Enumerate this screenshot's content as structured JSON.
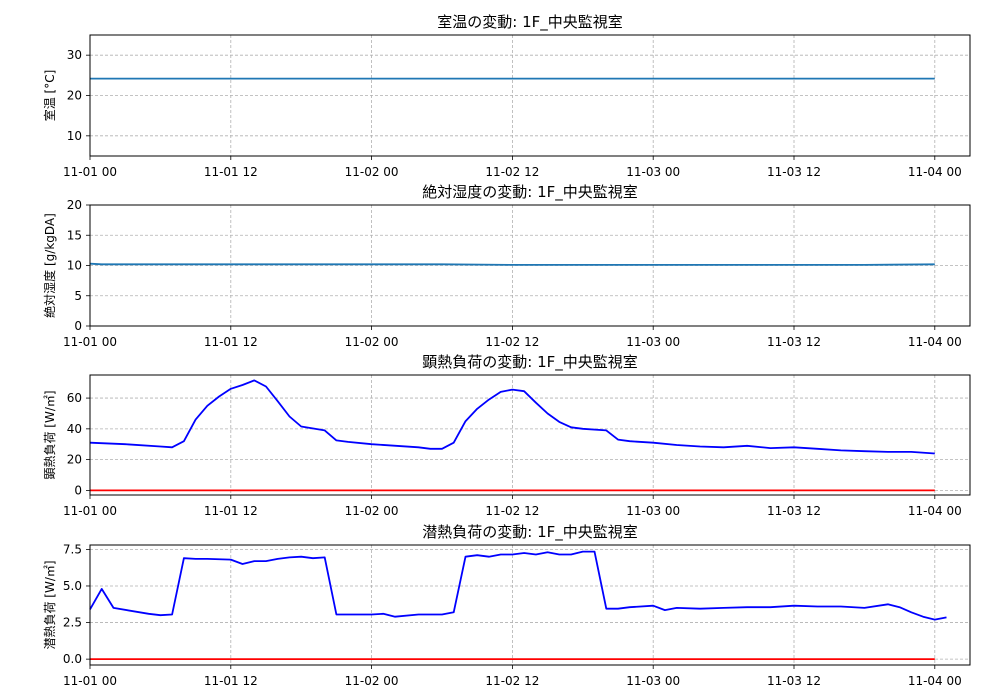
{
  "chart_data": [
    {
      "type": "line",
      "title": "室温の変動: 1F_中央監視室",
      "ylabel": "室温 [°C]",
      "xlim": [
        "2024-11-01 00:00",
        "2024-11-04 03:00"
      ],
      "ylim": [
        5,
        35
      ],
      "yticks": [
        10,
        20,
        30
      ],
      "xticklabels": [
        "11-01 00",
        "11-01 12",
        "11-02 00",
        "11-02 12",
        "11-03 00",
        "11-03 12",
        "11-04 00"
      ],
      "grid": true,
      "series": [
        {
          "color": "#1f77b4",
          "x": [
            "2024-11-01 00:00",
            "2024-11-04 00:00"
          ],
          "y": [
            24.2,
            24.2
          ]
        }
      ]
    },
    {
      "type": "line",
      "title": "絶対湿度の変動: 1F_中央監視室",
      "ylabel": "絶対湿度 [g/kgDA]",
      "xlim": [
        "2024-11-01 00:00",
        "2024-11-04 03:00"
      ],
      "ylim": [
        0,
        20
      ],
      "yticks": [
        0,
        5,
        10,
        15,
        20
      ],
      "xticklabels": [
        "11-01 00",
        "11-01 12",
        "11-02 00",
        "11-02 12",
        "11-03 00",
        "11-03 12",
        "11-04 00"
      ],
      "grid": true,
      "series": [
        {
          "color": "#1f77b4",
          "x": [
            "2024-11-01 00:00",
            "2024-11-01 01:00",
            "2024-11-01 06:00",
            "2024-11-01 12:00",
            "2024-11-01 18:00",
            "2024-11-02 00:00",
            "2024-11-02 06:00",
            "2024-11-02 12:00",
            "2024-11-02 18:00",
            "2024-11-03 00:00",
            "2024-11-03 06:00",
            "2024-11-03 12:00",
            "2024-11-03 18:00",
            "2024-11-04 00:00"
          ],
          "y": [
            10.3,
            10.2,
            10.2,
            10.2,
            10.2,
            10.2,
            10.2,
            10.1,
            10.1,
            10.1,
            10.1,
            10.1,
            10.1,
            10.2
          ]
        }
      ]
    },
    {
      "type": "line",
      "title": "顕熱負荷の変動: 1F_中央監視室",
      "ylabel": "顕熱負荷 [W/㎡]",
      "xlim": [
        "2024-11-01 00:00",
        "2024-11-04 03:00"
      ],
      "ylim": [
        -3,
        75
      ],
      "yticks": [
        0,
        20,
        40,
        60
      ],
      "xticklabels": [
        "11-01 00",
        "11-01 12",
        "11-02 00",
        "11-02 12",
        "11-03 00",
        "11-03 12",
        "11-04 00"
      ],
      "grid": true,
      "series": [
        {
          "color": "#0000ff",
          "x": [
            "2024-11-01 00:00",
            "2024-11-01 03:00",
            "2024-11-01 06:00",
            "2024-11-01 07:00",
            "2024-11-01 08:00",
            "2024-11-01 09:00",
            "2024-11-01 10:00",
            "2024-11-01 11:00",
            "2024-11-01 12:00",
            "2024-11-01 13:00",
            "2024-11-01 14:00",
            "2024-11-01 15:00",
            "2024-11-01 16:00",
            "2024-11-01 17:00",
            "2024-11-01 18:00",
            "2024-11-01 20:00",
            "2024-11-01 21:00",
            "2024-11-01 22:00",
            "2024-11-02 00:00",
            "2024-11-02 04:00",
            "2024-11-02 05:00",
            "2024-11-02 06:00",
            "2024-11-02 07:00",
            "2024-11-02 08:00",
            "2024-11-02 09:00",
            "2024-11-02 10:00",
            "2024-11-02 11:00",
            "2024-11-02 12:00",
            "2024-11-02 13:00",
            "2024-11-02 14:00",
            "2024-11-02 15:00",
            "2024-11-02 16:00",
            "2024-11-02 17:00",
            "2024-11-02 18:00",
            "2024-11-02 20:00",
            "2024-11-02 21:00",
            "2024-11-02 22:00",
            "2024-11-03 00:00",
            "2024-11-03 02:00",
            "2024-11-03 04:00",
            "2024-11-03 06:00",
            "2024-11-03 08:00",
            "2024-11-03 10:00",
            "2024-11-03 12:00",
            "2024-11-03 14:00",
            "2024-11-03 16:00",
            "2024-11-03 18:00",
            "2024-11-03 20:00",
            "2024-11-03 22:00",
            "2024-11-04 00:00"
          ],
          "y": [
            31,
            30,
            28.5,
            28,
            32,
            46,
            55,
            61,
            66,
            68.5,
            71.5,
            67.5,
            58,
            48,
            41.5,
            39,
            32.5,
            31.5,
            30,
            28,
            27,
            27,
            31,
            45,
            53,
            59,
            64,
            65.5,
            64.5,
            57,
            50,
            44.5,
            41,
            40,
            39,
            33,
            32,
            31,
            29.5,
            28.5,
            28,
            29,
            27.5,
            28,
            27,
            26,
            25.5,
            25,
            25,
            24
          ]
        },
        {
          "color": "#ff0000",
          "x": [
            "2024-11-01 00:00",
            "2024-11-04 00:00"
          ],
          "y": [
            0,
            0
          ]
        }
      ]
    },
    {
      "type": "line",
      "title": "潜熱負荷の変動: 1F_中央監視室",
      "ylabel": "潜熱負荷 [W/㎡]",
      "xlim": [
        "2024-11-01 00:00",
        "2024-11-04 03:00"
      ],
      "ylim": [
        -0.4,
        7.8
      ],
      "yticks": [
        0.0,
        2.5,
        5.0,
        7.5
      ],
      "ytickformat": "fixed1",
      "xticklabels": [
        "11-01 00",
        "11-01 12",
        "11-02 00",
        "11-02 12",
        "11-03 00",
        "11-03 12",
        "11-04 00"
      ],
      "grid": true,
      "series": [
        {
          "color": "#0000ff",
          "x": [
            "2024-11-01 00:00",
            "2024-11-01 01:00",
            "2024-11-01 02:00",
            "2024-11-01 05:00",
            "2024-11-01 06:00",
            "2024-11-01 07:00",
            "2024-11-01 08:00",
            "2024-11-01 09:00",
            "2024-11-01 10:00",
            "2024-11-01 12:00",
            "2024-11-01 13:00",
            "2024-11-01 14:00",
            "2024-11-01 15:00",
            "2024-11-01 16:00",
            "2024-11-01 17:00",
            "2024-11-01 18:00",
            "2024-11-01 19:00",
            "2024-11-01 20:00",
            "2024-11-01 21:00",
            "2024-11-01 22:00",
            "2024-11-02 00:00",
            "2024-11-02 01:00",
            "2024-11-02 02:00",
            "2024-11-02 04:00",
            "2024-11-02 06:00",
            "2024-11-02 07:00",
            "2024-11-02 08:00",
            "2024-11-02 09:00",
            "2024-11-02 10:00",
            "2024-11-02 11:00",
            "2024-11-02 12:00",
            "2024-11-02 13:00",
            "2024-11-02 14:00",
            "2024-11-02 15:00",
            "2024-11-02 16:00",
            "2024-11-02 17:00",
            "2024-11-02 18:00",
            "2024-11-02 19:00",
            "2024-11-02 20:00",
            "2024-11-02 21:00",
            "2024-11-02 22:00",
            "2024-11-03 00:00",
            "2024-11-03 01:00",
            "2024-11-03 02:00",
            "2024-11-03 04:00",
            "2024-11-03 06:00",
            "2024-11-03 08:00",
            "2024-11-03 10:00",
            "2024-11-03 12:00",
            "2024-11-03 14:00",
            "2024-11-03 16:00",
            "2024-11-03 18:00",
            "2024-11-03 20:00",
            "2024-11-03 21:00",
            "2024-11-03 22:00",
            "2024-11-03 23:00",
            "2024-11-04 00:00",
            "2024-11-04 01:00"
          ],
          "y": [
            3.4,
            4.8,
            3.5,
            3.1,
            3.0,
            3.05,
            6.9,
            6.85,
            6.85,
            6.8,
            6.5,
            6.7,
            6.7,
            6.85,
            6.95,
            7.0,
            6.9,
            6.95,
            3.05,
            3.05,
            3.05,
            3.1,
            2.9,
            3.05,
            3.05,
            3.2,
            7.0,
            7.1,
            7.0,
            7.15,
            7.15,
            7.25,
            7.15,
            7.3,
            7.15,
            7.15,
            7.35,
            7.35,
            3.45,
            3.45,
            3.55,
            3.65,
            3.35,
            3.5,
            3.45,
            3.5,
            3.55,
            3.55,
            3.65,
            3.6,
            3.6,
            3.5,
            3.75,
            3.55,
            3.2,
            2.9,
            2.7,
            2.85
          ]
        },
        {
          "color": "#ff0000",
          "x": [
            "2024-11-01 00:00",
            "2024-11-04 00:00"
          ],
          "y": [
            0,
            0
          ]
        }
      ]
    }
  ]
}
